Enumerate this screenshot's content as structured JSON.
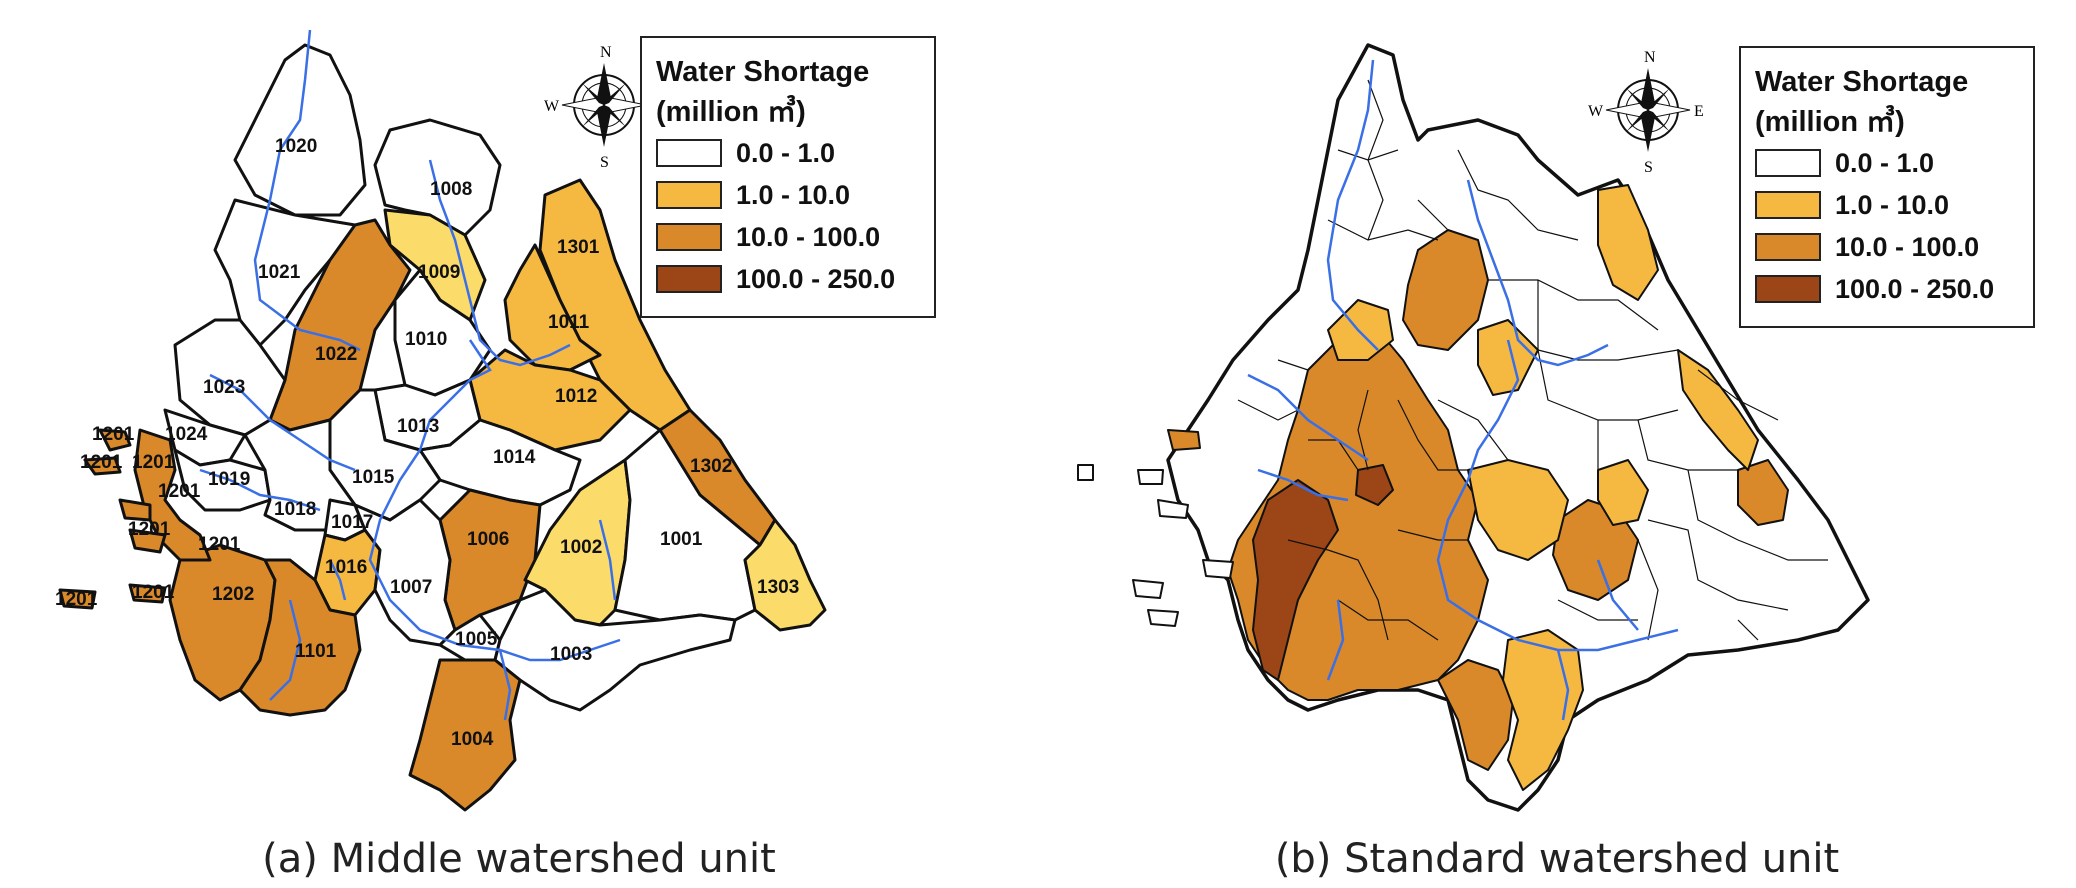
{
  "legend": {
    "title_line1": "Water Shortage",
    "title_line2": "(million ㎥)",
    "classes": [
      {
        "label": "0.0 - 1.0",
        "color": "#ffffff"
      },
      {
        "label": "1.0 - 10.0",
        "color": "#f5b942"
      },
      {
        "label": "10.0 - 100.0",
        "color": "#d9892a"
      },
      {
        "label": "100.0 - 250.0",
        "color": "#9c4516"
      }
    ]
  },
  "compass": {
    "n": "N",
    "s": "S",
    "e": "E",
    "w": "W"
  },
  "panel_a": {
    "caption": "(a) Middle watershed unit",
    "units": [
      {
        "id": "1020",
        "class": 0
      },
      {
        "id": "1008",
        "class": 0
      },
      {
        "id": "1021",
        "class": 0
      },
      {
        "id": "1009",
        "class": 4
      },
      {
        "id": "1301",
        "class": 1
      },
      {
        "id": "1022",
        "class": 2
      },
      {
        "id": "1011",
        "class": 1
      },
      {
        "id": "1010",
        "class": 0
      },
      {
        "id": "1023",
        "class": 0
      },
      {
        "id": "1012",
        "class": 1
      },
      {
        "id": "1013",
        "class": 0
      },
      {
        "id": "1024",
        "class": 0
      },
      {
        "id": "1014",
        "class": 0
      },
      {
        "id": "1302",
        "class": 2
      },
      {
        "id": "1019",
        "class": 0
      },
      {
        "id": "1015",
        "class": 0
      },
      {
        "id": "1018",
        "class": 0
      },
      {
        "id": "1017",
        "class": 0
      },
      {
        "id": "1006",
        "class": 2
      },
      {
        "id": "1002",
        "class": 4
      },
      {
        "id": "1001",
        "class": 0
      },
      {
        "id": "1016",
        "class": 1
      },
      {
        "id": "1007",
        "class": 0
      },
      {
        "id": "1303",
        "class": 4
      },
      {
        "id": "1202",
        "class": 2
      },
      {
        "id": "1005",
        "class": 0
      },
      {
        "id": "1003",
        "class": 0
      },
      {
        "id": "1101",
        "class": 2
      },
      {
        "id": "1004",
        "class": 2
      },
      {
        "id": "1201",
        "class": 2
      }
    ],
    "extra_colors": {
      "light_yellow": "#fbdc6a"
    }
  },
  "panel_b": {
    "caption": "(b) Standard watershed unit"
  },
  "colors": {
    "river": "#3a6fe6",
    "outline": "#111111"
  }
}
